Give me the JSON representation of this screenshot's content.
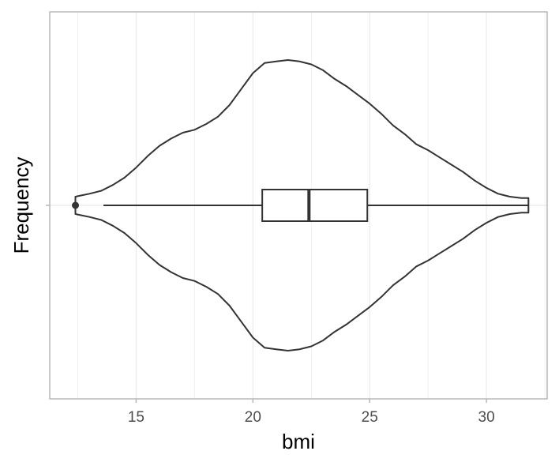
{
  "chart_data": {
    "type": "violin",
    "orientation": "horizontal",
    "xlabel": "bmi",
    "ylabel": "Frequency",
    "xlim": [
      11.3,
      32.6
    ],
    "x_ticks": [
      15,
      20,
      25,
      30
    ],
    "x_tick_labels": [
      "15",
      "20",
      "25",
      "30"
    ],
    "grid": true,
    "legend": "none",
    "density": {
      "x": [
        12.4,
        12.7,
        13.0,
        13.5,
        14.0,
        14.5,
        15.0,
        15.5,
        16.0,
        16.5,
        17.0,
        17.5,
        18.0,
        18.5,
        19.0,
        19.5,
        20.0,
        20.5,
        21.0,
        21.5,
        22.0,
        22.5,
        23.0,
        23.5,
        24.0,
        24.5,
        25.0,
        25.5,
        26.0,
        26.5,
        27.0,
        27.5,
        28.0,
        28.5,
        29.0,
        29.5,
        30.0,
        30.5,
        31.0,
        31.5,
        31.8
      ],
      "half_width": [
        0.06,
        0.07,
        0.08,
        0.1,
        0.14,
        0.19,
        0.26,
        0.34,
        0.41,
        0.46,
        0.5,
        0.52,
        0.56,
        0.61,
        0.69,
        0.8,
        0.91,
        0.98,
        0.99,
        1.0,
        0.99,
        0.97,
        0.93,
        0.87,
        0.82,
        0.76,
        0.7,
        0.63,
        0.55,
        0.49,
        0.42,
        0.38,
        0.33,
        0.28,
        0.23,
        0.17,
        0.12,
        0.08,
        0.06,
        0.05,
        0.05
      ]
    },
    "boxplot": {
      "whisker_low": 13.6,
      "q1": 20.4,
      "median": 22.4,
      "q3": 24.9,
      "whisker_high": 31.8,
      "outliers": [
        12.4
      ]
    },
    "colors": {
      "outline": "#333333",
      "grid": "#ebebeb",
      "border": "#b3b3b3",
      "box_fill": "#ffffff"
    }
  }
}
